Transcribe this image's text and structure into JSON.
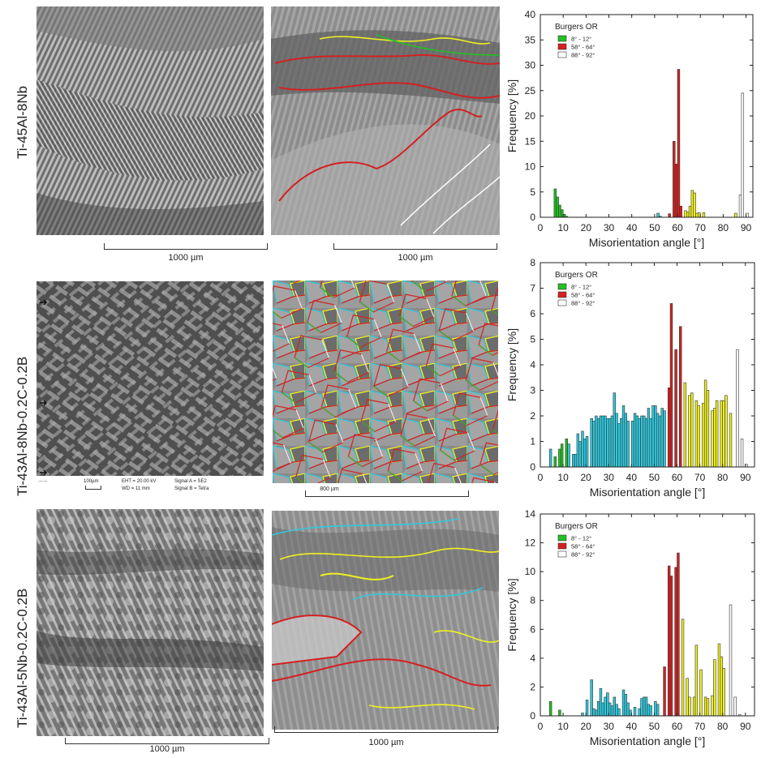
{
  "rows": [
    {
      "label": "Ti-45Al-8Nb",
      "sem_scale": "1000 µm",
      "ebsd_scale": "1000 µm"
    },
    {
      "label": "Ti-43Al-8Nb-0.2C-0.2B",
      "sem_scale": "",
      "ebsd_scale": "800 µm"
    },
    {
      "label": "Ti-43Al-5Nb-0.2C-0.2B",
      "sem_scale": "1000 µm",
      "ebsd_scale": "1000 µm"
    }
  ],
  "sem_info": {
    "scale_label": "100µm",
    "eht": "EHT = 20.00 kV",
    "wd": "WD =  11 mm",
    "signal_a": "Signal A = SE2",
    "signal_b": "Signal B = Tetra"
  },
  "colors": {
    "green": "#22c022",
    "red": "#d42020",
    "white": "#ffffff",
    "yellow": "#f0f020",
    "cyan": "#30c8dc"
  },
  "chart_data": [
    {
      "type": "bar",
      "xlabel": "Misorientation angle [°]",
      "ylabel": "Frequency [%]",
      "xlim": [
        0,
        93
      ],
      "ylim": [
        0,
        40
      ],
      "xticks": [
        0,
        10,
        20,
        30,
        40,
        50,
        60,
        70,
        80,
        90
      ],
      "yticks": [
        0,
        5,
        10,
        15,
        20,
        25,
        30,
        35,
        40
      ],
      "legend": {
        "title": "Burgers OR",
        "position": "top-left",
        "entries": [
          {
            "label": "8° - 12°",
            "color": "#22c022"
          },
          {
            "label": "58° - 64°",
            "color": "#d42020"
          },
          {
            "label": "88° - 92°",
            "color": "#ffffff"
          }
        ]
      },
      "bars": [
        {
          "x": 7,
          "y": 5.6,
          "c": "green"
        },
        {
          "x": 8,
          "y": 4.0,
          "c": "green"
        },
        {
          "x": 9,
          "y": 2.4,
          "c": "green"
        },
        {
          "x": 10,
          "y": 1.5,
          "c": "green"
        },
        {
          "x": 11,
          "y": 0.6,
          "c": "green"
        },
        {
          "x": 12,
          "y": 0.2,
          "c": "green"
        },
        {
          "x": 52,
          "y": 0.8,
          "c": "cyan"
        },
        {
          "x": 53,
          "y": 0.2,
          "c": "cyan"
        },
        {
          "x": 57,
          "y": 0.7,
          "c": "red"
        },
        {
          "x": 59,
          "y": 15.0,
          "c": "red"
        },
        {
          "x": 60,
          "y": 10.5,
          "c": "red"
        },
        {
          "x": 61,
          "y": 29.2,
          "c": "red"
        },
        {
          "x": 62,
          "y": 2.2,
          "c": "red"
        },
        {
          "x": 64,
          "y": 1.3,
          "c": "yellow"
        },
        {
          "x": 65,
          "y": 1.0,
          "c": "yellow"
        },
        {
          "x": 66,
          "y": 2.2,
          "c": "yellow"
        },
        {
          "x": 67,
          "y": 5.3,
          "c": "yellow"
        },
        {
          "x": 68,
          "y": 4.8,
          "c": "yellow"
        },
        {
          "x": 69,
          "y": 0.8,
          "c": "yellow"
        },
        {
          "x": 70,
          "y": 0.9,
          "c": "yellow"
        },
        {
          "x": 72,
          "y": 0.9,
          "c": "yellow"
        },
        {
          "x": 86,
          "y": 0.8,
          "c": "yellow"
        },
        {
          "x": 88,
          "y": 4.4,
          "c": "white"
        },
        {
          "x": 89,
          "y": 24.5,
          "c": "white"
        },
        {
          "x": 91,
          "y": 0.8,
          "c": "white"
        }
      ]
    },
    {
      "type": "bar",
      "xlabel": "Misorientation angle [°]",
      "ylabel": "Frequency [%]",
      "xlim": [
        0,
        94
      ],
      "ylim": [
        0,
        8
      ],
      "xticks": [
        0,
        10,
        20,
        30,
        40,
        50,
        60,
        70,
        80,
        90
      ],
      "yticks": [
        0,
        1,
        2,
        3,
        4,
        5,
        6,
        7,
        8
      ],
      "legend": {
        "title": "Burgers OR",
        "position": "top-left",
        "entries": [
          {
            "label": "8° - 12°",
            "color": "#22c022"
          },
          {
            "label": "58° - 64°",
            "color": "#d42020"
          },
          {
            "label": "88° - 92°",
            "color": "#ffffff"
          }
        ]
      },
      "bars": [
        {
          "x": 5,
          "y": 0.7,
          "c": "cyan"
        },
        {
          "x": 7,
          "y": 0.4,
          "c": "green"
        },
        {
          "x": 9,
          "y": 0.7,
          "c": "green"
        },
        {
          "x": 10,
          "y": 0.9,
          "c": "green"
        },
        {
          "x": 12,
          "y": 1.1,
          "c": "green"
        },
        {
          "x": 13,
          "y": 0.9,
          "c": "cyan"
        },
        {
          "x": 15,
          "y": 0.5,
          "c": "cyan"
        },
        {
          "x": 16,
          "y": 0.5,
          "c": "cyan"
        },
        {
          "x": 17,
          "y": 1.3,
          "c": "cyan"
        },
        {
          "x": 18,
          "y": 1.0,
          "c": "cyan"
        },
        {
          "x": 19,
          "y": 1.4,
          "c": "cyan"
        },
        {
          "x": 20,
          "y": 1.1,
          "c": "cyan"
        },
        {
          "x": 21,
          "y": 1.2,
          "c": "cyan"
        },
        {
          "x": 23,
          "y": 1.9,
          "c": "cyan"
        },
        {
          "x": 24,
          "y": 1.8,
          "c": "cyan"
        },
        {
          "x": 25,
          "y": 2.0,
          "c": "cyan"
        },
        {
          "x": 26,
          "y": 1.9,
          "c": "cyan"
        },
        {
          "x": 27,
          "y": 2.0,
          "c": "cyan"
        },
        {
          "x": 28,
          "y": 2.0,
          "c": "cyan"
        },
        {
          "x": 29,
          "y": 2.0,
          "c": "cyan"
        },
        {
          "x": 30,
          "y": 1.9,
          "c": "cyan"
        },
        {
          "x": 31,
          "y": 1.9,
          "c": "cyan"
        },
        {
          "x": 32,
          "y": 2.0,
          "c": "cyan"
        },
        {
          "x": 33,
          "y": 2.9,
          "c": "cyan"
        },
        {
          "x": 34,
          "y": 2.1,
          "c": "cyan"
        },
        {
          "x": 35,
          "y": 1.7,
          "c": "cyan"
        },
        {
          "x": 36,
          "y": 1.9,
          "c": "cyan"
        },
        {
          "x": 37,
          "y": 2.4,
          "c": "cyan"
        },
        {
          "x": 38,
          "y": 2.1,
          "c": "cyan"
        },
        {
          "x": 39,
          "y": 1.8,
          "c": "cyan"
        },
        {
          "x": 41,
          "y": 1.8,
          "c": "cyan"
        },
        {
          "x": 42,
          "y": 2.1,
          "c": "cyan"
        },
        {
          "x": 43,
          "y": 2.0,
          "c": "cyan"
        },
        {
          "x": 44,
          "y": 1.9,
          "c": "cyan"
        },
        {
          "x": 45,
          "y": 2.0,
          "c": "cyan"
        },
        {
          "x": 46,
          "y": 2.0,
          "c": "cyan"
        },
        {
          "x": 47,
          "y": 1.9,
          "c": "cyan"
        },
        {
          "x": 48,
          "y": 2.3,
          "c": "cyan"
        },
        {
          "x": 49,
          "y": 1.9,
          "c": "cyan"
        },
        {
          "x": 50,
          "y": 2.4,
          "c": "cyan"
        },
        {
          "x": 51,
          "y": 2.4,
          "c": "cyan"
        },
        {
          "x": 52,
          "y": 2.1,
          "c": "cyan"
        },
        {
          "x": 53,
          "y": 2.0,
          "c": "cyan"
        },
        {
          "x": 54,
          "y": 2.3,
          "c": "cyan"
        },
        {
          "x": 55,
          "y": 2.2,
          "c": "cyan"
        },
        {
          "x": 57,
          "y": 3.1,
          "c": "red"
        },
        {
          "x": 58,
          "y": 6.4,
          "c": "red"
        },
        {
          "x": 60,
          "y": 4.6,
          "c": "red"
        },
        {
          "x": 62,
          "y": 5.5,
          "c": "red"
        },
        {
          "x": 64,
          "y": 3.3,
          "c": "yellow"
        },
        {
          "x": 66,
          "y": 2.8,
          "c": "yellow"
        },
        {
          "x": 67,
          "y": 2.9,
          "c": "yellow"
        },
        {
          "x": 69,
          "y": 2.6,
          "c": "yellow"
        },
        {
          "x": 70,
          "y": 2.4,
          "c": "yellow"
        },
        {
          "x": 72,
          "y": 2.5,
          "c": "yellow"
        },
        {
          "x": 73,
          "y": 3.4,
          "c": "yellow"
        },
        {
          "x": 74,
          "y": 3.0,
          "c": "yellow"
        },
        {
          "x": 76,
          "y": 2.2,
          "c": "yellow"
        },
        {
          "x": 77,
          "y": 2.3,
          "c": "yellow"
        },
        {
          "x": 78,
          "y": 2.6,
          "c": "yellow"
        },
        {
          "x": 80,
          "y": 2.6,
          "c": "yellow"
        },
        {
          "x": 81,
          "y": 2.6,
          "c": "yellow"
        },
        {
          "x": 82,
          "y": 2.8,
          "c": "yellow"
        },
        {
          "x": 84,
          "y": 2.1,
          "c": "yellow"
        },
        {
          "x": 87,
          "y": 4.6,
          "c": "white"
        },
        {
          "x": 89,
          "y": 1.1,
          "c": "white"
        },
        {
          "x": 91,
          "y": 0.1,
          "c": "white"
        }
      ]
    },
    {
      "type": "bar",
      "xlabel": "Misorientation angle [°]",
      "ylabel": "Frequency [%]",
      "xlim": [
        0,
        94
      ],
      "ylim": [
        0,
        14
      ],
      "xticks": [
        0,
        10,
        20,
        30,
        40,
        50,
        60,
        70,
        80,
        90
      ],
      "yticks": [
        0,
        2,
        4,
        6,
        8,
        10,
        12,
        14
      ],
      "legend": {
        "title": "Burgers OR",
        "position": "top-left",
        "entries": [
          {
            "label": "8° - 12°",
            "color": "#22c022"
          },
          {
            "label": "58° - 64°",
            "color": "#d42020"
          },
          {
            "label": "88° - 92°",
            "color": "#ffffff"
          }
        ]
      },
      "bars": [
        {
          "x": 5,
          "y": 1.0,
          "c": "green"
        },
        {
          "x": 9,
          "y": 0.4,
          "c": "green"
        },
        {
          "x": 19,
          "y": 0.2,
          "c": "cyan"
        },
        {
          "x": 21,
          "y": 1.1,
          "c": "cyan"
        },
        {
          "x": 23,
          "y": 2.5,
          "c": "cyan"
        },
        {
          "x": 24,
          "y": 0.5,
          "c": "cyan"
        },
        {
          "x": 25,
          "y": 0.4,
          "c": "cyan"
        },
        {
          "x": 26,
          "y": 1.0,
          "c": "cyan"
        },
        {
          "x": 27,
          "y": 1.9,
          "c": "cyan"
        },
        {
          "x": 28,
          "y": 0.9,
          "c": "cyan"
        },
        {
          "x": 29,
          "y": 1.3,
          "c": "cyan"
        },
        {
          "x": 30,
          "y": 1.6,
          "c": "cyan"
        },
        {
          "x": 31,
          "y": 0.9,
          "c": "cyan"
        },
        {
          "x": 32,
          "y": 0.7,
          "c": "cyan"
        },
        {
          "x": 33,
          "y": 1.3,
          "c": "cyan"
        },
        {
          "x": 34,
          "y": 0.8,
          "c": "cyan"
        },
        {
          "x": 35,
          "y": 0.5,
          "c": "cyan"
        },
        {
          "x": 37,
          "y": 1.8,
          "c": "cyan"
        },
        {
          "x": 38,
          "y": 1.5,
          "c": "cyan"
        },
        {
          "x": 39,
          "y": 0.9,
          "c": "cyan"
        },
        {
          "x": 40,
          "y": 0.4,
          "c": "cyan"
        },
        {
          "x": 42,
          "y": 0.6,
          "c": "cyan"
        },
        {
          "x": 44,
          "y": 0.5,
          "c": "cyan"
        },
        {
          "x": 45,
          "y": 1.2,
          "c": "cyan"
        },
        {
          "x": 46,
          "y": 1.3,
          "c": "cyan"
        },
        {
          "x": 47,
          "y": 1.3,
          "c": "cyan"
        },
        {
          "x": 48,
          "y": 0.8,
          "c": "cyan"
        },
        {
          "x": 49,
          "y": 0.7,
          "c": "cyan"
        },
        {
          "x": 51,
          "y": 1.0,
          "c": "cyan"
        },
        {
          "x": 52,
          "y": 0.8,
          "c": "cyan"
        },
        {
          "x": 55,
          "y": 3.4,
          "c": "red"
        },
        {
          "x": 57,
          "y": 10.4,
          "c": "red"
        },
        {
          "x": 58,
          "y": 9.7,
          "c": "red"
        },
        {
          "x": 60,
          "y": 10.3,
          "c": "red"
        },
        {
          "x": 61,
          "y": 11.3,
          "c": "red"
        },
        {
          "x": 63,
          "y": 6.7,
          "c": "yellow"
        },
        {
          "x": 65,
          "y": 2.6,
          "c": "yellow"
        },
        {
          "x": 66,
          "y": 1.3,
          "c": "yellow"
        },
        {
          "x": 68,
          "y": 1.3,
          "c": "yellow"
        },
        {
          "x": 69,
          "y": 4.9,
          "c": "yellow"
        },
        {
          "x": 71,
          "y": 3.2,
          "c": "yellow"
        },
        {
          "x": 73,
          "y": 1.3,
          "c": "yellow"
        },
        {
          "x": 74,
          "y": 1.2,
          "c": "yellow"
        },
        {
          "x": 76,
          "y": 1.4,
          "c": "yellow"
        },
        {
          "x": 77,
          "y": 3.9,
          "c": "yellow"
        },
        {
          "x": 79,
          "y": 5.0,
          "c": "yellow"
        },
        {
          "x": 80,
          "y": 4.1,
          "c": "yellow"
        },
        {
          "x": 81,
          "y": 3.3,
          "c": "yellow"
        },
        {
          "x": 84,
          "y": 7.7,
          "c": "white"
        },
        {
          "x": 86,
          "y": 1.3,
          "c": "white"
        },
        {
          "x": 88,
          "y": 0.1,
          "c": "white"
        }
      ]
    }
  ]
}
